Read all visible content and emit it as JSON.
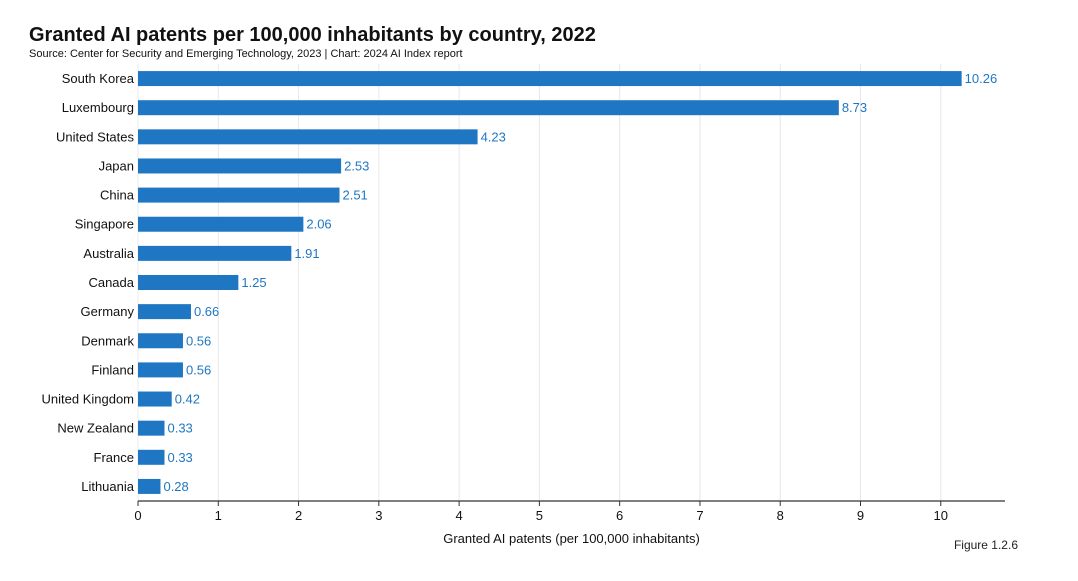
{
  "header": {
    "title": "Granted AI patents per 100,000 inhabitants by country, 2022",
    "subtitle": "Source: Center for Security and Emerging Technology, 2023 | Chart: 2024 AI Index report"
  },
  "footer": {
    "figure_label": "Figure 1.2.6"
  },
  "colors": {
    "bar": "#1f77c4",
    "value_label": "#1f77c4",
    "grid": "#e8e8e8",
    "axis": "#333333"
  },
  "chart_data": {
    "type": "bar",
    "orientation": "horizontal",
    "title": "Granted AI patents per 100,000 inhabitants by country, 2022",
    "subtitle": "Source: Center for Security and Emerging Technology, 2023 | Chart: 2024 AI Index report",
    "xlabel": "Granted AI patents (per 100,000 inhabitants)",
    "ylabel": "",
    "categories": [
      "South Korea",
      "Luxembourg",
      "United States",
      "Japan",
      "China",
      "Singapore",
      "Australia",
      "Canada",
      "Germany",
      "Denmark",
      "Finland",
      "United Kingdom",
      "New Zealand",
      "France",
      "Lithuania"
    ],
    "values": [
      10.26,
      8.73,
      4.23,
      2.53,
      2.51,
      2.06,
      1.91,
      1.25,
      0.66,
      0.56,
      0.56,
      0.42,
      0.33,
      0.33,
      0.28
    ],
    "value_labels": [
      "10.26",
      "8.73",
      "4.23",
      "2.53",
      "2.51",
      "2.06",
      "1.91",
      "1.25",
      "0.66",
      "0.56",
      "0.56",
      "0.42",
      "0.33",
      "0.33",
      "0.28"
    ],
    "xlim": [
      0,
      10.8
    ],
    "xticks": [
      0,
      1,
      2,
      3,
      4,
      5,
      6,
      7,
      8,
      9,
      10
    ],
    "xtick_labels": [
      "0",
      "1",
      "2",
      "3",
      "4",
      "5",
      "6",
      "7",
      "8",
      "9",
      "10"
    ],
    "grid": true,
    "legend": "none"
  }
}
